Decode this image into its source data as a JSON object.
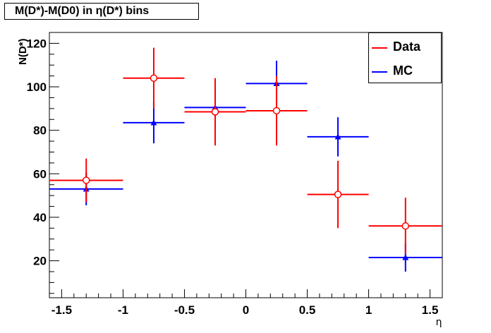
{
  "chart_data": {
    "type": "scatter",
    "title": "M(D*)-M(D0) in η(D*) bins",
    "xlabel": "η",
    "ylabel": "N(D*)",
    "xlim": [
      -1.6,
      1.6
    ],
    "ylim": [
      3,
      125
    ],
    "x_ticks": [
      -1.5,
      -1,
      -0.5,
      0,
      0.5,
      1,
      1.5
    ],
    "x_tick_labels": [
      "-1.5",
      "-1",
      "-0.5",
      "0",
      "0.5",
      "1",
      "1.5"
    ],
    "y_ticks": [
      20,
      40,
      60,
      80,
      100,
      120
    ],
    "y_tick_labels": [
      "20",
      "40",
      "60",
      "80",
      "100",
      "120"
    ],
    "grid": false,
    "legend_position": "top-right",
    "series": [
      {
        "name": "Data",
        "color": "#ff0000",
        "marker": "open-circle",
        "points": [
          {
            "x": -1.3,
            "y": 57,
            "xlow": -1.6,
            "xhigh": -1.0,
            "yerr": 10
          },
          {
            "x": -0.75,
            "y": 104,
            "xlow": -1.0,
            "xhigh": -0.5,
            "yerr": 14
          },
          {
            "x": -0.25,
            "y": 88.5,
            "xlow": -0.5,
            "xhigh": 0.0,
            "yerr": 15.5
          },
          {
            "x": 0.25,
            "y": 89,
            "xlow": 0.0,
            "xhigh": 0.5,
            "yerr": 16
          },
          {
            "x": 0.75,
            "y": 50.5,
            "xlow": 0.5,
            "xhigh": 1.0,
            "yerr": 15.5
          },
          {
            "x": 1.3,
            "y": 36,
            "xlow": 1.0,
            "xhigh": 1.6,
            "yerr": 13
          }
        ]
      },
      {
        "name": "MC",
        "color": "#0000ff",
        "marker": "triangle",
        "points": [
          {
            "x": -1.3,
            "y": 53,
            "xlow": -1.6,
            "xhigh": -1.0,
            "yerr": 7.5
          },
          {
            "x": -0.75,
            "y": 83.5,
            "xlow": -1.0,
            "xhigh": -0.5,
            "yerr": 9.5
          },
          {
            "x": -0.25,
            "y": 90.5,
            "xlow": -0.5,
            "xhigh": 0.0,
            "yerr": 8.5
          },
          {
            "x": 0.25,
            "y": 101.5,
            "xlow": 0.0,
            "xhigh": 0.5,
            "yerr": 10.5
          },
          {
            "x": 0.75,
            "y": 77,
            "xlow": 0.5,
            "xhigh": 1.0,
            "yerr": 9
          },
          {
            "x": 1.3,
            "y": 21.5,
            "xlow": 1.0,
            "xhigh": 1.6,
            "yerr": 6.5
          }
        ]
      }
    ]
  }
}
